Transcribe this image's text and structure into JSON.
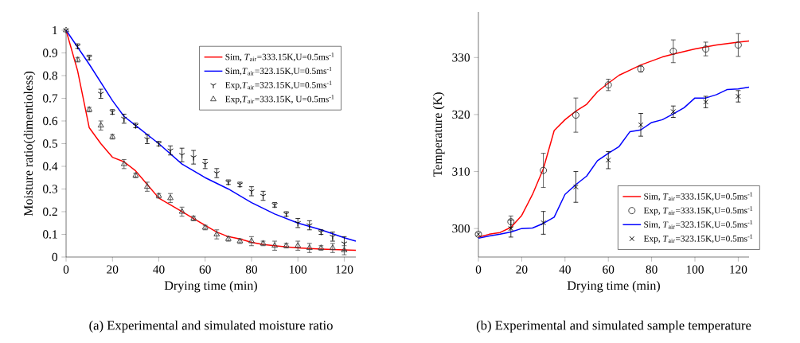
{
  "chart_data": [
    {
      "type": "line",
      "xlabel": "Drying time (min)",
      "ylabel": "Moisture ratio(dimentioless)",
      "annotations": [
        "(a) Experimental and simulated moisture ratio"
      ],
      "xlim": [
        0,
        125
      ],
      "ylim": [
        0,
        1
      ],
      "xticks": [
        0,
        20,
        40,
        60,
        80,
        100,
        120
      ],
      "yticks": [
        0,
        0.1,
        0.2,
        0.3,
        0.4,
        0.5,
        0.6,
        0.7,
        0.8,
        0.9,
        1
      ],
      "legend": "top right",
      "series": [
        {
          "name": "Sim, *T*$_{air}$=333.15K,U=0.5ms$^{-1}$",
          "color": "#ff0000",
          "x": [
            0,
            5,
            10,
            15,
            20,
            25,
            30,
            35,
            40,
            45,
            50,
            55,
            60,
            65,
            70,
            75,
            80,
            85,
            90,
            95,
            100,
            110,
            125
          ],
          "values": [
            1,
            0.82,
            0.57,
            0.5,
            0.44,
            0.42,
            0.38,
            0.32,
            0.26,
            0.23,
            0.2,
            0.17,
            0.14,
            0.11,
            0.09,
            0.08,
            0.065,
            0.055,
            0.05,
            0.045,
            0.04,
            0.035,
            0.03
          ]
        },
        {
          "name": "Sim,*T*$_{air}$=323.15K,U=0.5ms$^{-1}$",
          "color": "#0000ff",
          "x": [
            0,
            10,
            20,
            25,
            30,
            40,
            50,
            60,
            70,
            80,
            90,
            100,
            110,
            120,
            125
          ],
          "values": [
            1,
            0.85,
            0.69,
            0.62,
            0.58,
            0.5,
            0.41,
            0.35,
            0.3,
            0.24,
            0.19,
            0.15,
            0.12,
            0.085,
            0.07
          ]
        },
        {
          "name": "Exp,*T*$_{air}$=323.15K,U=0.5ms$^{-1}$",
          "type": "scatter",
          "color": "#000000",
          "x": [
            0,
            5,
            10,
            15,
            20,
            25,
            30,
            35,
            40,
            45,
            50,
            55,
            60,
            65,
            70,
            75,
            80,
            85,
            90,
            95,
            100,
            105,
            110,
            115,
            120
          ],
          "values": [
            1,
            0.93,
            0.88,
            0.72,
            0.64,
            0.61,
            0.58,
            0.52,
            0.5,
            0.47,
            0.45,
            0.44,
            0.41,
            0.37,
            0.33,
            0.32,
            0.29,
            0.27,
            0.23,
            0.19,
            0.15,
            0.14,
            0.11,
            0.09,
            0.06
          ],
          "errors": [
            null,
            0.01,
            0.01,
            0.02,
            0.01,
            0.02,
            0.01,
            0.02,
            0.01,
            0.02,
            0.03,
            0.03,
            0.02,
            0.02,
            0.01,
            0.01,
            0.02,
            0.02,
            0.01,
            0.01,
            0.02,
            0.02,
            0.01,
            0.02,
            0.03
          ]
        },
        {
          "name": "Exp,*T*$_{air}$=333.15K, U=0.5ms$^{-1}$",
          "type": "scatter",
          "marker": "triangle",
          "color": "#404040",
          "x": [
            0,
            5,
            10,
            15,
            20,
            25,
            30,
            35,
            40,
            45,
            50,
            55,
            60,
            65,
            70,
            75,
            80,
            85,
            90,
            95,
            100,
            105,
            110,
            115,
            120
          ],
          "values": [
            1,
            0.87,
            0.65,
            0.58,
            0.53,
            0.41,
            0.36,
            0.31,
            0.27,
            0.26,
            0.2,
            0.17,
            0.13,
            0.1,
            0.08,
            0.07,
            0.07,
            0.06,
            0.05,
            0.05,
            0.05,
            0.04,
            0.04,
            0.04,
            0.03
          ],
          "errors": [
            null,
            0.01,
            0.01,
            0.02,
            0.01,
            0.02,
            0.01,
            0.02,
            0.01,
            0.02,
            0.02,
            0.01,
            0.01,
            0.02,
            0.01,
            0.01,
            0.02,
            0.01,
            0.02,
            0.01,
            0.02,
            0.02,
            0.01,
            0.02,
            0.02
          ]
        }
      ]
    },
    {
      "type": "line",
      "xlabel": "Drying time (min)",
      "ylabel": "Temperature (K)",
      "annotations": [
        "(b) Experimental and simulated sample temperature"
      ],
      "xlim": [
        0,
        125
      ],
      "ylim": [
        295,
        338
      ],
      "xticks": [
        0,
        20,
        40,
        60,
        80,
        100,
        120
      ],
      "yticks": [
        300,
        310,
        320,
        330
      ],
      "legend": "bottom right",
      "series": [
        {
          "name": "Sim, *T*$_{air}$=333.15K,U=0.5ms$^{-1}$",
          "color": "#ff0000",
          "x": [
            0,
            5,
            10,
            15,
            20,
            25,
            30,
            35,
            40,
            45,
            50,
            55,
            60,
            65,
            70,
            75,
            80,
            85,
            90,
            100,
            110,
            120,
            125
          ],
          "values": [
            298.5,
            299,
            299.3,
            300.2,
            302.3,
            306,
            310.5,
            317.2,
            319.1,
            320.6,
            321.8,
            324,
            325.5,
            326.9,
            327.8,
            328.7,
            329.4,
            330.1,
            330.6,
            331.5,
            332.2,
            332.7,
            332.9
          ]
        },
        {
          "name": "Exp, *T*$_{air}$=333.15K,U=0.5ms$^{-1}$",
          "type": "scatter",
          "marker": "circle",
          "color": "#333333",
          "x": [
            0,
            15,
            30,
            45,
            60,
            75,
            90,
            105,
            120
          ],
          "values": [
            299,
            301.2,
            310.2,
            319.9,
            325.2,
            328,
            331.1,
            331.5,
            332.2
          ],
          "errors": [
            null,
            1,
            3,
            3,
            1,
            0.5,
            2,
            1.2,
            2
          ]
        },
        {
          "name": "Sim, *T*$_{air}$=323.15K,U=0.5ms$^{-1}$",
          "color": "#0000ff",
          "x": [
            0,
            5,
            10,
            15,
            20,
            25,
            30,
            35,
            40,
            45,
            50,
            55,
            60,
            65,
            70,
            75,
            80,
            85,
            90,
            95,
            100,
            105,
            110,
            115,
            120,
            125
          ],
          "values": [
            298.3,
            298.7,
            299,
            299.4,
            300,
            300.1,
            300.9,
            302,
            306,
            307.7,
            309.2,
            311.9,
            313.2,
            314.4,
            317,
            317.3,
            318.6,
            319.1,
            320.1,
            321.2,
            322.9,
            322.9,
            323.5,
            324.4,
            324.5,
            324.8
          ]
        },
        {
          "name": "Exp, *T*$_{air}$=323.15K,U=0.5ms$^{-1}$",
          "type": "scatter",
          "marker": "cross",
          "color": "#000000",
          "x": [
            0,
            15,
            30,
            45,
            60,
            75,
            90,
            105,
            120
          ],
          "values": [
            299,
            300,
            301,
            307.3,
            312,
            318.2,
            320.5,
            322.2,
            323.2
          ],
          "errors": [
            null,
            1.5,
            2,
            2.7,
            1.5,
            2,
            1,
            1,
            1
          ]
        }
      ]
    }
  ]
}
